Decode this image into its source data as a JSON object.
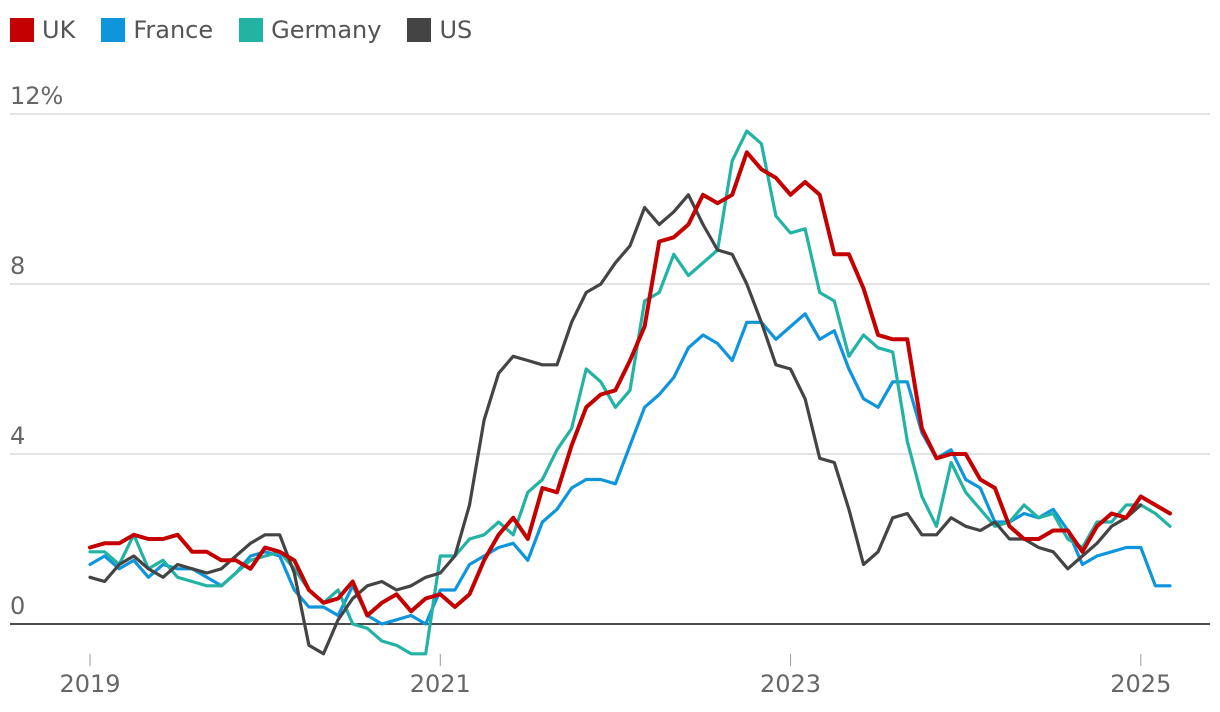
{
  "chart_data": {
    "type": "line",
    "title": "",
    "xlabel": "",
    "ylabel": "",
    "y_unit_suffix": "%",
    "ylim": [
      -0.7,
      12
    ],
    "yticks": [
      0,
      4,
      8,
      12
    ],
    "ytick_labels": [
      "0",
      "4",
      "8",
      "12%"
    ],
    "xticks": [
      "2019",
      "2021",
      "2023",
      "2025"
    ],
    "x_range": [
      "2019-01",
      "2025-02"
    ],
    "grid": true,
    "legend_position": "top-left",
    "series": [
      {
        "name": "UK",
        "color": "#c40000",
        "points": [
          [
            "2019-01",
            1.8
          ],
          [
            "2019-02",
            1.9
          ],
          [
            "2019-03",
            1.9
          ],
          [
            "2019-04",
            2.1
          ],
          [
            "2019-05",
            2.0
          ],
          [
            "2019-06",
            2.0
          ],
          [
            "2019-07",
            2.1
          ],
          [
            "2019-08",
            1.7
          ],
          [
            "2019-09",
            1.7
          ],
          [
            "2019-10",
            1.5
          ],
          [
            "2019-11",
            1.5
          ],
          [
            "2019-12",
            1.3
          ],
          [
            "2020-01",
            1.8
          ],
          [
            "2020-02",
            1.7
          ],
          [
            "2020-03",
            1.5
          ],
          [
            "2020-04",
            0.8
          ],
          [
            "2020-05",
            0.5
          ],
          [
            "2020-06",
            0.6
          ],
          [
            "2020-07",
            1.0
          ],
          [
            "2020-08",
            0.2
          ],
          [
            "2020-09",
            0.5
          ],
          [
            "2020-10",
            0.7
          ],
          [
            "2020-11",
            0.3
          ],
          [
            "2020-12",
            0.6
          ],
          [
            "2021-01",
            0.7
          ],
          [
            "2021-02",
            0.4
          ],
          [
            "2021-03",
            0.7
          ],
          [
            "2021-04",
            1.5
          ],
          [
            "2021-05",
            2.1
          ],
          [
            "2021-06",
            2.5
          ],
          [
            "2021-07",
            2.0
          ],
          [
            "2021-08",
            3.2
          ],
          [
            "2021-09",
            3.1
          ],
          [
            "2021-10",
            4.2
          ],
          [
            "2021-11",
            5.1
          ],
          [
            "2021-12",
            5.4
          ],
          [
            "2022-01",
            5.5
          ],
          [
            "2022-02",
            6.2
          ],
          [
            "2022-03",
            7.0
          ],
          [
            "2022-04",
            9.0
          ],
          [
            "2022-05",
            9.1
          ],
          [
            "2022-06",
            9.4
          ],
          [
            "2022-07",
            10.1
          ],
          [
            "2022-08",
            9.9
          ],
          [
            "2022-09",
            10.1
          ],
          [
            "2022-10",
            11.1
          ],
          [
            "2022-11",
            10.7
          ],
          [
            "2022-12",
            10.5
          ],
          [
            "2023-01",
            10.1
          ],
          [
            "2023-02",
            10.4
          ],
          [
            "2023-03",
            10.1
          ],
          [
            "2023-04",
            8.7
          ],
          [
            "2023-05",
            8.7
          ],
          [
            "2023-06",
            7.9
          ],
          [
            "2023-07",
            6.8
          ],
          [
            "2023-08",
            6.7
          ],
          [
            "2023-09",
            6.7
          ],
          [
            "2023-10",
            4.6
          ],
          [
            "2023-11",
            3.9
          ],
          [
            "2023-12",
            4.0
          ],
          [
            "2024-01",
            4.0
          ],
          [
            "2024-02",
            3.4
          ],
          [
            "2024-03",
            3.2
          ],
          [
            "2024-04",
            2.3
          ],
          [
            "2024-05",
            2.0
          ],
          [
            "2024-06",
            2.0
          ],
          [
            "2024-07",
            2.2
          ],
          [
            "2024-08",
            2.2
          ],
          [
            "2024-09",
            1.7
          ],
          [
            "2024-10",
            2.3
          ],
          [
            "2024-11",
            2.6
          ],
          [
            "2024-12",
            2.5
          ],
          [
            "2025-01",
            3.0
          ],
          [
            "2025-02",
            2.8
          ],
          [
            "2025-03",
            2.6
          ]
        ]
      },
      {
        "name": "France",
        "color": "#0f95dc",
        "points": [
          [
            "2019-01",
            1.4
          ],
          [
            "2019-02",
            1.6
          ],
          [
            "2019-03",
            1.3
          ],
          [
            "2019-04",
            1.5
          ],
          [
            "2019-05",
            1.1
          ],
          [
            "2019-06",
            1.4
          ],
          [
            "2019-07",
            1.3
          ],
          [
            "2019-08",
            1.3
          ],
          [
            "2019-09",
            1.1
          ],
          [
            "2019-10",
            0.9
          ],
          [
            "2019-11",
            1.2
          ],
          [
            "2019-12",
            1.6
          ],
          [
            "2020-01",
            1.7
          ],
          [
            "2020-02",
            1.6
          ],
          [
            "2020-03",
            0.8
          ],
          [
            "2020-04",
            0.4
          ],
          [
            "2020-05",
            0.4
          ],
          [
            "2020-06",
            0.2
          ],
          [
            "2020-07",
            0.9
          ],
          [
            "2020-08",
            0.2
          ],
          [
            "2020-09",
            0.0
          ],
          [
            "2020-10",
            0.1
          ],
          [
            "2020-11",
            0.2
          ],
          [
            "2020-12",
            0.0
          ],
          [
            "2021-01",
            0.8
          ],
          [
            "2021-02",
            0.8
          ],
          [
            "2021-03",
            1.4
          ],
          [
            "2021-04",
            1.6
          ],
          [
            "2021-05",
            1.8
          ],
          [
            "2021-06",
            1.9
          ],
          [
            "2021-07",
            1.5
          ],
          [
            "2021-08",
            2.4
          ],
          [
            "2021-09",
            2.7
          ],
          [
            "2021-10",
            3.2
          ],
          [
            "2021-11",
            3.4
          ],
          [
            "2021-12",
            3.4
          ],
          [
            "2022-01",
            3.3
          ],
          [
            "2022-02",
            4.2
          ],
          [
            "2022-03",
            5.1
          ],
          [
            "2022-04",
            5.4
          ],
          [
            "2022-05",
            5.8
          ],
          [
            "2022-06",
            6.5
          ],
          [
            "2022-07",
            6.8
          ],
          [
            "2022-08",
            6.6
          ],
          [
            "2022-09",
            6.2
          ],
          [
            "2022-10",
            7.1
          ],
          [
            "2022-11",
            7.1
          ],
          [
            "2022-12",
            6.7
          ],
          [
            "2023-01",
            7.0
          ],
          [
            "2023-02",
            7.3
          ],
          [
            "2023-03",
            6.7
          ],
          [
            "2023-04",
            6.9
          ],
          [
            "2023-05",
            6.0
          ],
          [
            "2023-06",
            5.3
          ],
          [
            "2023-07",
            5.1
          ],
          [
            "2023-08",
            5.7
          ],
          [
            "2023-09",
            5.7
          ],
          [
            "2023-10",
            4.5
          ],
          [
            "2023-11",
            3.9
          ],
          [
            "2023-12",
            4.1
          ],
          [
            "2024-01",
            3.4
          ],
          [
            "2024-02",
            3.2
          ],
          [
            "2024-03",
            2.4
          ],
          [
            "2024-04",
            2.4
          ],
          [
            "2024-05",
            2.6
          ],
          [
            "2024-06",
            2.5
          ],
          [
            "2024-07",
            2.7
          ],
          [
            "2024-08",
            2.2
          ],
          [
            "2024-09",
            1.4
          ],
          [
            "2024-10",
            1.6
          ],
          [
            "2024-11",
            1.7
          ],
          [
            "2024-12",
            1.8
          ],
          [
            "2025-01",
            1.8
          ],
          [
            "2025-02",
            0.9
          ],
          [
            "2025-03",
            0.9
          ]
        ]
      },
      {
        "name": "Germany",
        "color": "#22b3a5",
        "points": [
          [
            "2019-01",
            1.7
          ],
          [
            "2019-02",
            1.7
          ],
          [
            "2019-03",
            1.4
          ],
          [
            "2019-04",
            2.1
          ],
          [
            "2019-05",
            1.3
          ],
          [
            "2019-06",
            1.5
          ],
          [
            "2019-07",
            1.1
          ],
          [
            "2019-08",
            1.0
          ],
          [
            "2019-09",
            0.9
          ],
          [
            "2019-10",
            0.9
          ],
          [
            "2019-11",
            1.2
          ],
          [
            "2019-12",
            1.5
          ],
          [
            "2020-01",
            1.6
          ],
          [
            "2020-02",
            1.7
          ],
          [
            "2020-03",
            1.3
          ],
          [
            "2020-04",
            0.8
          ],
          [
            "2020-05",
            0.5
          ],
          [
            "2020-06",
            0.8
          ],
          [
            "2020-07",
            0.0
          ],
          [
            "2020-08",
            -0.1
          ],
          [
            "2020-09",
            -0.4
          ],
          [
            "2020-10",
            -0.5
          ],
          [
            "2020-11",
            -0.7
          ],
          [
            "2020-12",
            -0.7
          ],
          [
            "2021-01",
            1.6
          ],
          [
            "2021-02",
            1.6
          ],
          [
            "2021-03",
            2.0
          ],
          [
            "2021-04",
            2.1
          ],
          [
            "2021-05",
            2.4
          ],
          [
            "2021-06",
            2.1
          ],
          [
            "2021-07",
            3.1
          ],
          [
            "2021-08",
            3.4
          ],
          [
            "2021-09",
            4.1
          ],
          [
            "2021-10",
            4.6
          ],
          [
            "2021-11",
            6.0
          ],
          [
            "2021-12",
            5.7
          ],
          [
            "2022-01",
            5.1
          ],
          [
            "2022-02",
            5.5
          ],
          [
            "2022-03",
            7.6
          ],
          [
            "2022-04",
            7.8
          ],
          [
            "2022-05",
            8.7
          ],
          [
            "2022-06",
            8.2
          ],
          [
            "2022-07",
            8.5
          ],
          [
            "2022-08",
            8.8
          ],
          [
            "2022-09",
            10.9
          ],
          [
            "2022-10",
            11.6
          ],
          [
            "2022-11",
            11.3
          ],
          [
            "2022-12",
            9.6
          ],
          [
            "2023-01",
            9.2
          ],
          [
            "2023-02",
            9.3
          ],
          [
            "2023-03",
            7.8
          ],
          [
            "2023-04",
            7.6
          ],
          [
            "2023-05",
            6.3
          ],
          [
            "2023-06",
            6.8
          ],
          [
            "2023-07",
            6.5
          ],
          [
            "2023-08",
            6.4
          ],
          [
            "2023-09",
            4.3
          ],
          [
            "2023-10",
            3.0
          ],
          [
            "2023-11",
            2.3
          ],
          [
            "2023-12",
            3.8
          ],
          [
            "2024-01",
            3.1
          ],
          [
            "2024-02",
            2.7
          ],
          [
            "2024-03",
            2.3
          ],
          [
            "2024-04",
            2.4
          ],
          [
            "2024-05",
            2.8
          ],
          [
            "2024-06",
            2.5
          ],
          [
            "2024-07",
            2.6
          ],
          [
            "2024-08",
            2.0
          ],
          [
            "2024-09",
            1.8
          ],
          [
            "2024-10",
            2.4
          ],
          [
            "2024-11",
            2.4
          ],
          [
            "2024-12",
            2.8
          ],
          [
            "2025-01",
            2.8
          ],
          [
            "2025-02",
            2.6
          ],
          [
            "2025-03",
            2.3
          ]
        ]
      },
      {
        "name": "US",
        "color": "#444444",
        "points": [
          [
            "2019-01",
            1.1
          ],
          [
            "2019-02",
            1.0
          ],
          [
            "2019-03",
            1.4
          ],
          [
            "2019-04",
            1.6
          ],
          [
            "2019-05",
            1.3
          ],
          [
            "2019-06",
            1.1
          ],
          [
            "2019-07",
            1.4
          ],
          [
            "2019-08",
            1.3
          ],
          [
            "2019-09",
            1.2
          ],
          [
            "2019-10",
            1.3
          ],
          [
            "2019-11",
            1.6
          ],
          [
            "2019-12",
            1.9
          ],
          [
            "2020-01",
            2.1
          ],
          [
            "2020-02",
            2.1
          ],
          [
            "2020-03",
            1.2
          ],
          [
            "2020-04",
            -0.5
          ],
          [
            "2020-05",
            -0.7
          ],
          [
            "2020-06",
            0.1
          ],
          [
            "2020-07",
            0.6
          ],
          [
            "2020-08",
            0.9
          ],
          [
            "2020-09",
            1.0
          ],
          [
            "2020-10",
            0.8
          ],
          [
            "2020-11",
            0.9
          ],
          [
            "2020-12",
            1.1
          ],
          [
            "2021-01",
            1.2
          ],
          [
            "2021-02",
            1.6
          ],
          [
            "2021-03",
            2.8
          ],
          [
            "2021-04",
            4.8
          ],
          [
            "2021-05",
            5.9
          ],
          [
            "2021-06",
            6.3
          ],
          [
            "2021-07",
            6.2
          ],
          [
            "2021-08",
            6.1
          ],
          [
            "2021-09",
            6.1
          ],
          [
            "2021-10",
            7.1
          ],
          [
            "2021-11",
            7.8
          ],
          [
            "2021-12",
            8.0
          ],
          [
            "2022-01",
            8.5
          ],
          [
            "2022-02",
            8.9
          ],
          [
            "2022-03",
            9.8
          ],
          [
            "2022-04",
            9.4
          ],
          [
            "2022-05",
            9.7
          ],
          [
            "2022-06",
            10.1
          ],
          [
            "2022-07",
            9.4
          ],
          [
            "2022-08",
            8.8
          ],
          [
            "2022-09",
            8.7
          ],
          [
            "2022-10",
            8.0
          ],
          [
            "2022-11",
            7.1
          ],
          [
            "2022-12",
            6.1
          ],
          [
            "2023-01",
            6.0
          ],
          [
            "2023-02",
            5.3
          ],
          [
            "2023-03",
            3.9
          ],
          [
            "2023-04",
            3.8
          ],
          [
            "2023-05",
            2.7
          ],
          [
            "2023-06",
            1.4
          ],
          [
            "2023-07",
            1.7
          ],
          [
            "2023-08",
            2.5
          ],
          [
            "2023-09",
            2.6
          ],
          [
            "2023-10",
            2.1
          ],
          [
            "2023-11",
            2.1
          ],
          [
            "2023-12",
            2.5
          ],
          [
            "2024-01",
            2.3
          ],
          [
            "2024-02",
            2.2
          ],
          [
            "2024-03",
            2.4
          ],
          [
            "2024-04",
            2.0
          ],
          [
            "2024-05",
            2.0
          ],
          [
            "2024-06",
            1.8
          ],
          [
            "2024-07",
            1.7
          ],
          [
            "2024-08",
            1.3
          ],
          [
            "2024-09",
            1.6
          ],
          [
            "2024-10",
            1.9
          ],
          [
            "2024-11",
            2.3
          ],
          [
            "2024-12",
            2.5
          ],
          [
            "2025-01",
            2.8
          ]
        ]
      }
    ]
  }
}
